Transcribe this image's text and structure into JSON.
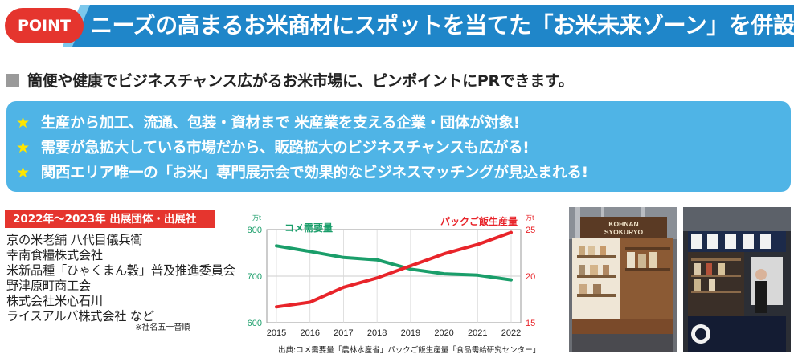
{
  "header": {
    "badge": "POINT",
    "headline": "ニーズの高まるお米商材にスポットを当てた「お米未来ゾーン」を併設!",
    "bar_color": "#1f86c9",
    "badge_color": "#e5352e"
  },
  "subhead": "簡便や健康でビジネスチャンス広がるお米市場に、ピンポイントにPRできます。",
  "bullets": [
    "生産から加工、流通、包装・資材まで 米産業を支える企業・団体が対象!",
    "需要が急拡大している市場だから、販路拡大のビジネスチャンスも広がる!",
    "関西エリア唯一の「お米」専門展示会で効果的なビジネスマッチングが見込まれる!"
  ],
  "bullet_icon": "star-icon",
  "exhibitors": {
    "title": "2022年〜2023年 出展団体・出展社",
    "items": [
      "京の米老舗 八代目儀兵衛",
      "幸南食糧株式会社",
      "米新品種「ひゃくまん穀」普及推進委員会",
      "野津原町商工会",
      "株式会社米心石川",
      "ライスアルバ株式会社 など"
    ],
    "note": "※社名五十音順"
  },
  "chart_data": {
    "type": "line",
    "x": [
      "2015",
      "2016",
      "2017",
      "2018",
      "2019",
      "2020",
      "2021",
      "2022"
    ],
    "y_left": {
      "unit": "万t",
      "ticks": [
        "800",
        "700",
        "600"
      ],
      "range": [
        600,
        800
      ]
    },
    "y_right": {
      "unit": "万t",
      "ticks": [
        "25",
        "20",
        "15"
      ],
      "range": [
        15,
        25
      ]
    },
    "series": [
      {
        "name": "コメ需要量",
        "axis": "left",
        "color": "#1a9e6a",
        "values": [
          765,
          753,
          740,
          735,
          715,
          705,
          702,
          692
        ]
      },
      {
        "name": "パックご飯生産量",
        "axis": "right",
        "color": "#e8242a",
        "values": [
          16.7,
          17.2,
          18.8,
          19.8,
          21.1,
          22.4,
          23.4,
          24.7
        ]
      }
    ],
    "grid": true
  },
  "source": "出典:コメ需要量「農林水産省」パックご飯生産量「食品需給研究センター」",
  "photos": {
    "photo1_sign": "KOHNAN SYOKURYO"
  }
}
